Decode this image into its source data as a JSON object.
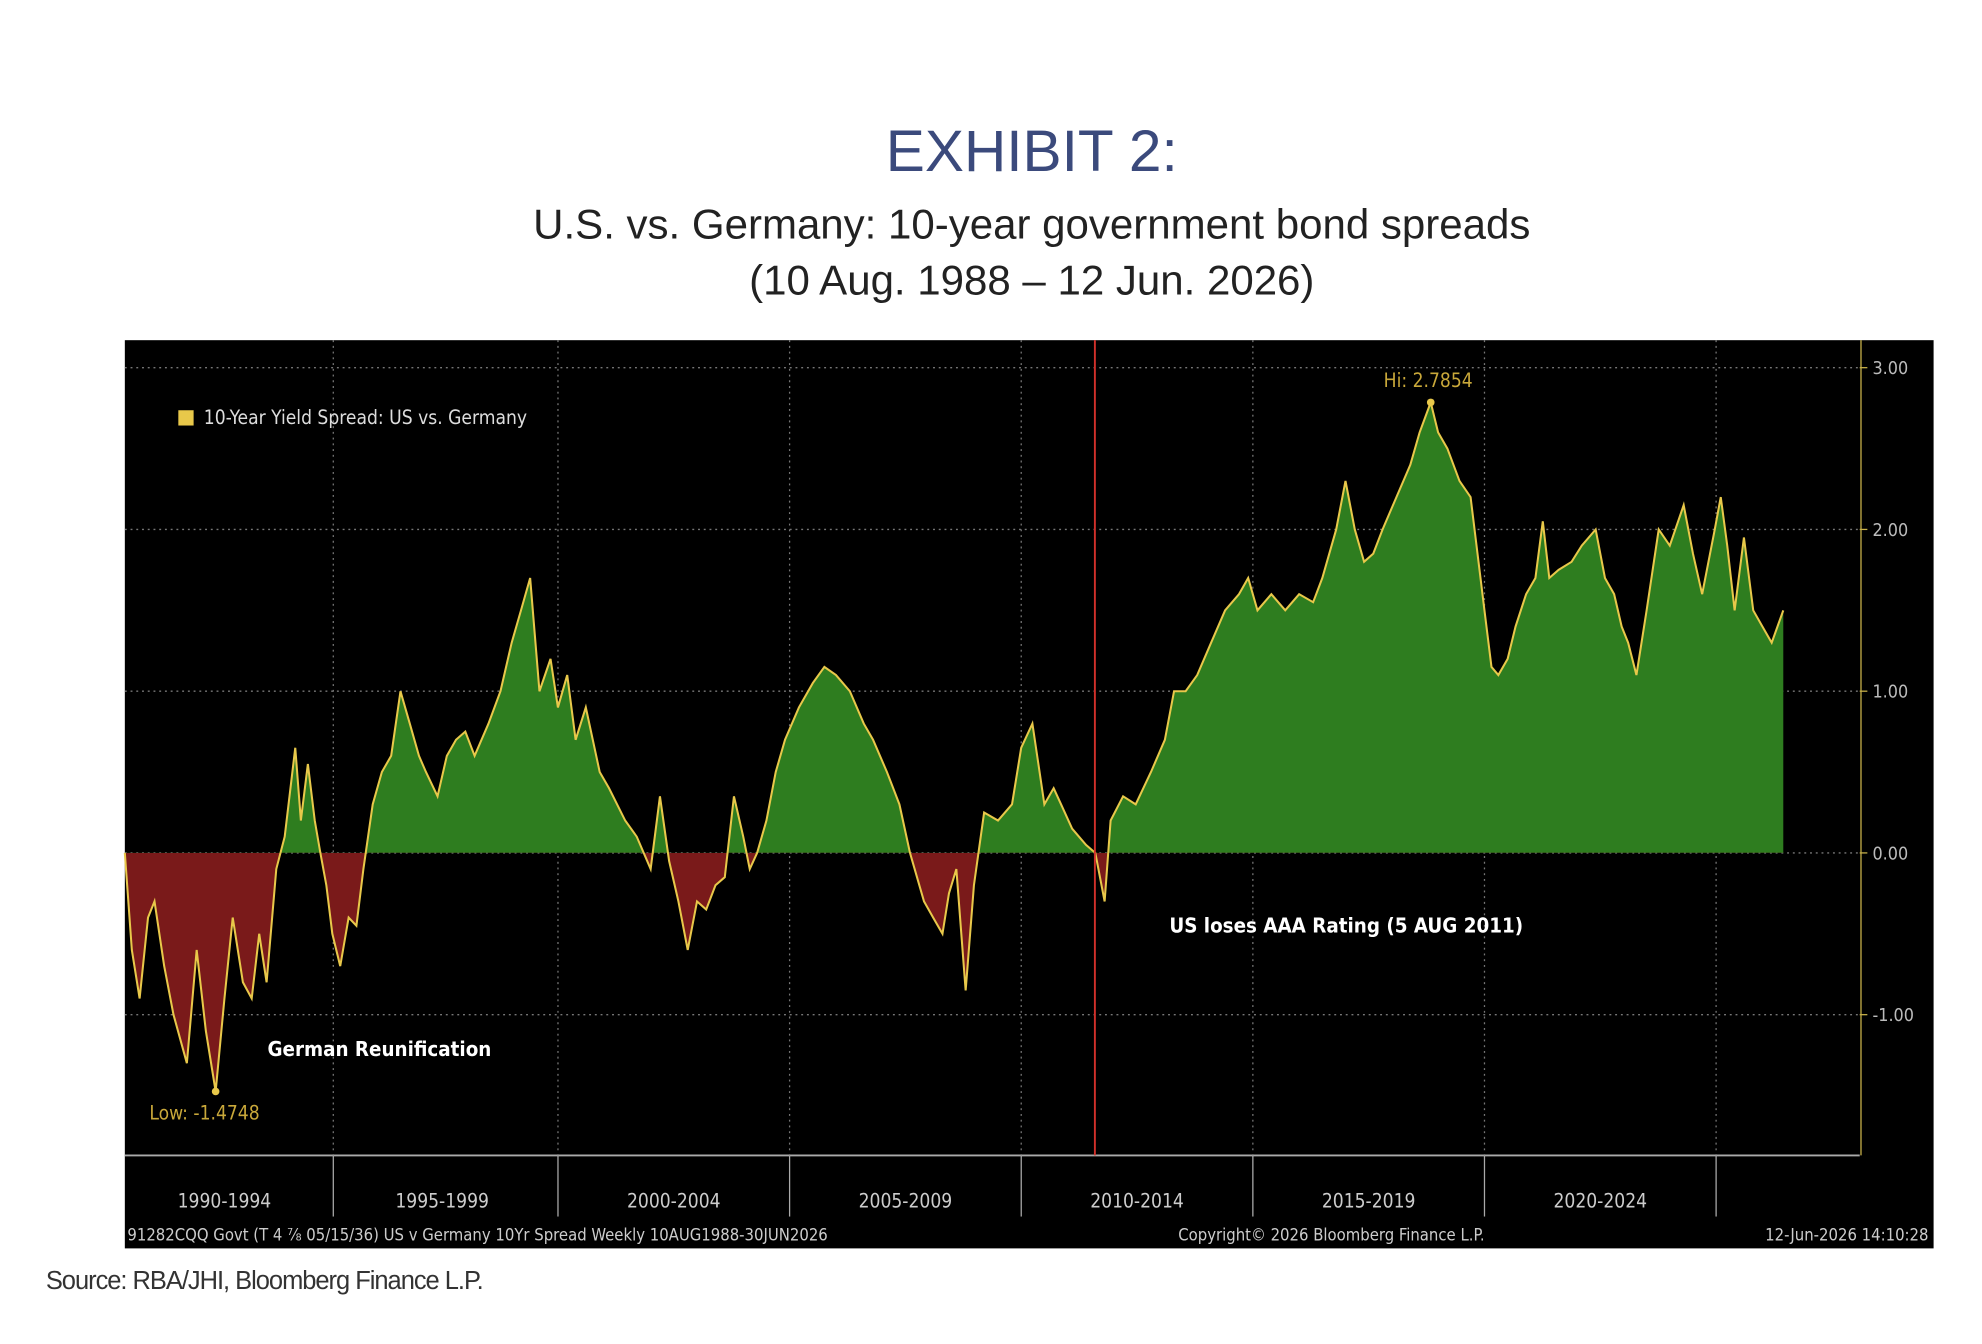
{
  "chart_data": {
    "type": "area",
    "title": "EXHIBIT 2:",
    "subtitle": [
      "U.S. vs. Germany: 10-year government bond spreads",
      "(10 Aug. 1988 – 12 Jun. 2026)"
    ],
    "source": "Source: RBA/JHI, Bloomberg Finance L.P.",
    "footer": [
      "91282CQQ Govt (T 4 ⅞ 05/15/36) US v Germany 10Yr Spread Weekly 10AUG1988-30JUN2026",
      "Copyright© 2026 Bloomberg Finance L.P.",
      "12-Jun-2026 14:10:28"
    ],
    "legend": "upper left",
    "grid": true,
    "positive_color": "#2e7d1f",
    "negative_color": "#7a1a1a",
    "line_color": "#e8c84a",
    "annotations": {
      "high": "Hi: 2.7854",
      "low": "Low: -1.4748",
      "reunification": "German Reunification",
      "event": "US loses AAA Rating (5 AUG 2011)"
    },
    "event_x": 2011.59,
    "event_color": "#d0302a",
    "xlim": [
      1990.65,
      2028.1
    ],
    "xticks": [
      {
        "value": 1992.8,
        "label": "1990-1994"
      },
      {
        "value": 1997.5,
        "label": "1995-1999"
      },
      {
        "value": 2002.5,
        "label": "2000-2004"
      },
      {
        "value": 2007.5,
        "label": "2005-2009"
      },
      {
        "value": 2012.5,
        "label": "2010-2014"
      },
      {
        "value": 2017.5,
        "label": "2015-2019"
      },
      {
        "value": 2022.5,
        "label": "2020-2024"
      }
    ],
    "ylim": [
      -1.87,
      3.17
    ],
    "yticks": [
      {
        "value": -1,
        "label": "-1.00"
      },
      {
        "value": 0,
        "label": "0.00"
      },
      {
        "value": 1,
        "label": "1.00"
      },
      {
        "value": 2,
        "label": "2.00"
      },
      {
        "value": 3,
        "label": "3.00"
      }
    ],
    "series": [
      {
        "name": "10-Year Yield Spread: US vs. Germany",
        "color": "#e8c84a",
        "x": [
          1990.65,
          1990.8,
          1990.97,
          1991.15,
          1991.29,
          1991.5,
          1991.7,
          1991.99,
          1992.2,
          1992.4,
          1992.61,
          1992.8,
          1992.98,
          1993.2,
          1993.39,
          1993.55,
          1993.71,
          1993.92,
          1994.1,
          1994.33,
          1994.45,
          1994.6,
          1994.75,
          1994.87,
          1995.0,
          1995.13,
          1995.3,
          1995.48,
          1995.65,
          1995.8,
          1996.0,
          1996.2,
          1996.4,
          1996.6,
          1996.8,
          1997.0,
          1997.15,
          1997.4,
          1997.6,
          1997.8,
          1998.0,
          1998.2,
          1998.5,
          1998.76,
          1999.0,
          1999.2,
          1999.4,
          1999.6,
          1999.84,
          2000.0,
          2000.2,
          2000.38,
          2000.6,
          2000.9,
          2001.1,
          2001.45,
          2001.7,
          2002.0,
          2002.2,
          2002.4,
          2002.6,
          2002.8,
          2003.0,
          2003.2,
          2003.4,
          2003.6,
          2003.8,
          2004.0,
          2004.14,
          2004.3,
          2004.5,
          2004.7,
          2004.9,
          2005.2,
          2005.5,
          2005.75,
          2006.0,
          2006.3,
          2006.6,
          2006.8,
          2007.1,
          2007.37,
          2007.6,
          2007.9,
          2008.1,
          2008.3,
          2008.44,
          2008.6,
          2008.8,
          2008.98,
          2009.2,
          2009.5,
          2009.8,
          2010.0,
          2010.24,
          2010.5,
          2010.7,
          2010.86,
          2011.1,
          2011.4,
          2011.6,
          2011.8,
          2011.93,
          2012.2,
          2012.47,
          2012.8,
          2013.1,
          2013.3,
          2013.55,
          2013.8,
          2014.1,
          2014.4,
          2014.7,
          2014.9,
          2015.1,
          2015.4,
          2015.7,
          2016.0,
          2016.3,
          2016.5,
          2016.8,
          2017.0,
          2017.2,
          2017.4,
          2017.6,
          2017.8,
          2018.1,
          2018.4,
          2018.6,
          2018.84,
          2019.0,
          2019.2,
          2019.46,
          2019.7,
          2020.0,
          2020.15,
          2020.3,
          2020.5,
          2020.67,
          2020.9,
          2021.1,
          2021.26,
          2021.4,
          2021.6,
          2021.88,
          2022.1,
          2022.4,
          2022.6,
          2022.8,
          2022.96,
          2023.1,
          2023.28,
          2023.5,
          2023.76,
          2024.0,
          2024.3,
          2024.5,
          2024.7,
          2024.97,
          2025.1,
          2025.24,
          2025.4,
          2025.6,
          2025.8,
          2026.0,
          2026.2,
          2026.45
        ],
        "values": [
          0,
          -0.6,
          -0.9,
          -0.4,
          -0.3,
          -0.7,
          -1.0,
          -1.3,
          -0.6,
          -1.1,
          -1.4748,
          -0.9,
          -0.4,
          -0.8,
          -0.9,
          -0.5,
          -0.8,
          -0.1,
          0.1,
          0.65,
          0.2,
          0.55,
          0.2,
          0.0,
          -0.2,
          -0.5,
          -0.7,
          -0.4,
          -0.45,
          -0.1,
          0.3,
          0.5,
          0.6,
          1.0,
          0.8,
          0.6,
          0.5,
          0.35,
          0.6,
          0.7,
          0.75,
          0.6,
          0.8,
          1.0,
          1.3,
          1.5,
          1.7,
          1.0,
          1.2,
          0.9,
          1.1,
          0.7,
          0.9,
          0.5,
          0.4,
          0.2,
          0.1,
          -0.1,
          0.35,
          -0.05,
          -0.3,
          -0.6,
          -0.3,
          -0.35,
          -0.2,
          -0.15,
          0.35,
          0.1,
          -0.1,
          0.0,
          0.2,
          0.5,
          0.7,
          0.9,
          1.05,
          1.15,
          1.1,
          1.0,
          0.8,
          0.7,
          0.5,
          0.3,
          0.0,
          -0.3,
          -0.4,
          -0.5,
          -0.25,
          -0.1,
          -0.85,
          -0.2,
          0.25,
          0.2,
          0.3,
          0.65,
          0.8,
          0.3,
          0.4,
          0.3,
          0.15,
          0.05,
          0.0,
          -0.3,
          0.2,
          0.35,
          0.3,
          0.5,
          0.7,
          1.0,
          1.0,
          1.1,
          1.3,
          1.5,
          1.6,
          1.7,
          1.5,
          1.6,
          1.5,
          1.6,
          1.55,
          1.7,
          2.0,
          2.3,
          2.0,
          1.8,
          1.85,
          2.0,
          2.2,
          2.4,
          2.6,
          2.7854,
          2.6,
          2.5,
          2.3,
          2.2,
          1.5,
          1.15,
          1.1,
          1.2,
          1.4,
          1.6,
          1.7,
          2.05,
          1.7,
          1.75,
          1.8,
          1.9,
          2.0,
          1.7,
          1.6,
          1.4,
          1.3,
          1.1,
          1.5,
          2.0,
          1.9,
          2.15,
          1.85,
          1.6,
          2.0,
          2.2,
          1.9,
          1.5,
          1.95,
          1.5,
          1.4,
          1.3,
          1.5
        ]
      }
    ]
  }
}
